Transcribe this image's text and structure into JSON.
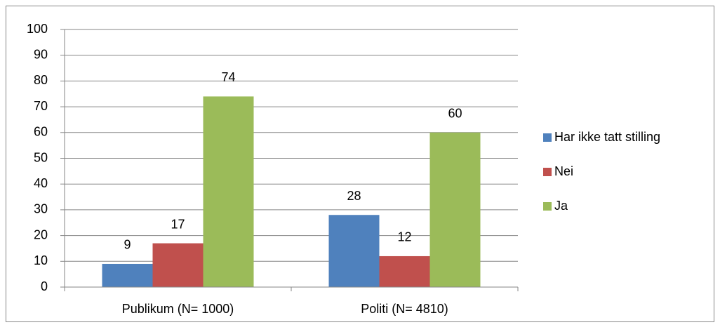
{
  "chart_data": {
    "type": "bar",
    "categories": [
      "Publikum (N= 1000)",
      "Politi (N= 4810)"
    ],
    "series": [
      {
        "name": "Har ikke tatt stilling",
        "color": "#4f81bd",
        "values": [
          9,
          28
        ]
      },
      {
        "name": "Nei",
        "color": "#c0504d",
        "values": [
          17,
          12
        ]
      },
      {
        "name": "Ja",
        "color": "#9bbb59",
        "values": [
          74,
          60
        ]
      }
    ],
    "ylim": [
      0,
      100
    ],
    "yticks": [
      0,
      10,
      20,
      30,
      40,
      50,
      60,
      70,
      80,
      90,
      100
    ],
    "grid": true,
    "legend": "right"
  }
}
